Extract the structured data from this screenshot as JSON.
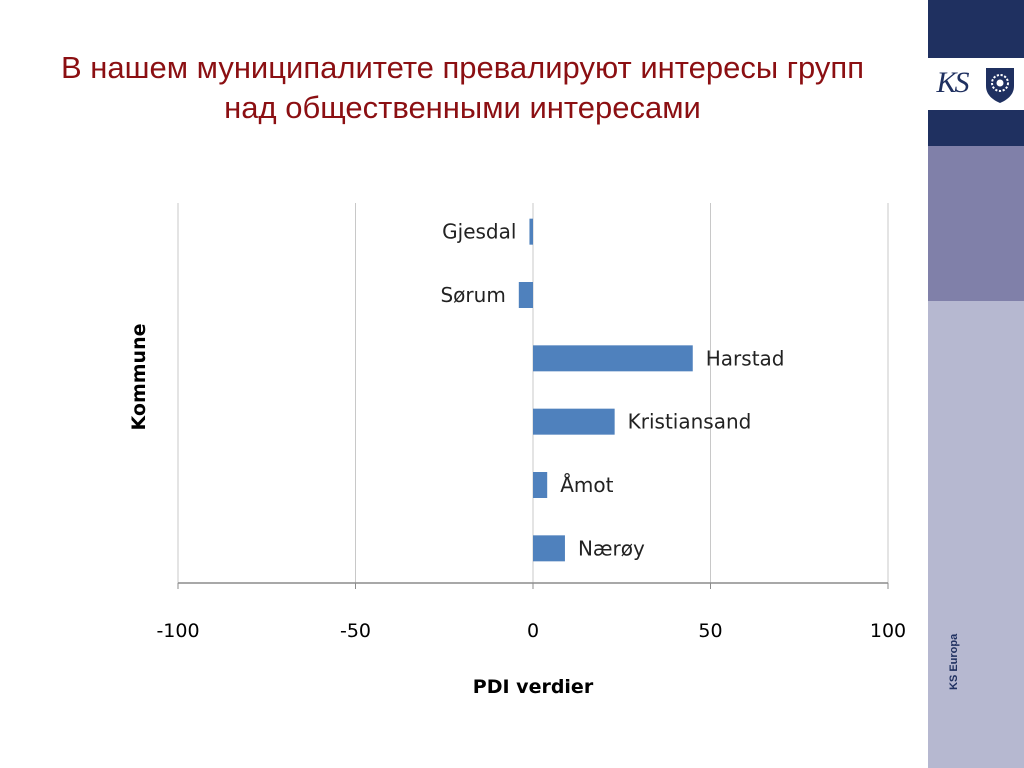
{
  "slide": {
    "title_line1": "В нашем муниципалитете превалируют интересы групп",
    "title_line2": "над общественными интересами",
    "logo_text": "KS",
    "side_text": "KS Europa",
    "icons": [
      "ks-logo",
      "crest-icon"
    ]
  },
  "colors": {
    "title": "#8b0f12",
    "bar": "#4f81bd",
    "navy": "#1f3060",
    "panel_mid": "#8080a9",
    "panel_light": "#b6b8d0"
  },
  "chart_data": {
    "type": "bar",
    "orientation": "horizontal",
    "categories": [
      "Gjesdal",
      "Sørum",
      "Harstad",
      "Kristiansand",
      "Åmot",
      "Nærøy"
    ],
    "values": [
      -1,
      -4,
      45,
      23,
      4,
      9
    ],
    "xlabel": "PDI verdier",
    "ylabel": "Kommune",
    "xlim": [
      -100,
      100
    ],
    "xticks": [
      "-100",
      "-50",
      "0",
      "50",
      "100"
    ],
    "grid": true
  }
}
